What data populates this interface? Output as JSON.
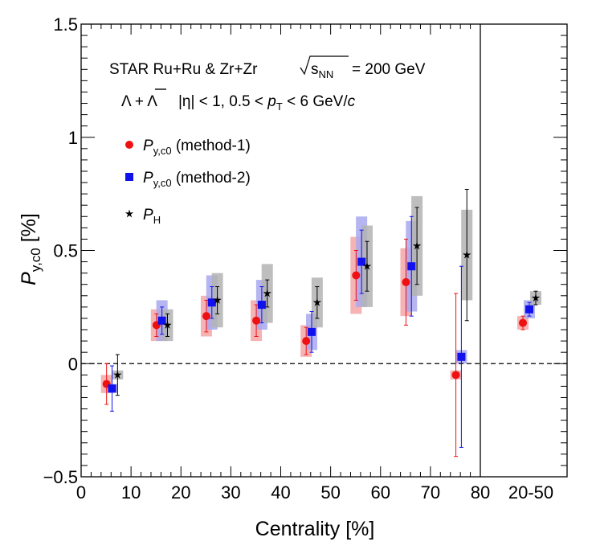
{
  "chart_data": {
    "type": "scatter",
    "annotation": {
      "experiment": "STAR  Ru+Ru & Zr+Zr",
      "energy_sqrt": "s",
      "energy_sub": "NN",
      "energy_value": "= 200 GeV",
      "particle_lambda": "Λ + ",
      "particle_lambda_bar": "Λ",
      "kin_1": "|η| < 1, 0.5 < ",
      "kin_p": "p",
      "kin_sub": "T",
      "kin_2": " < 6 GeV/",
      "kin_c": "c"
    },
    "ylabel_main": "P",
    "ylabel_sub": "y,c0",
    "ylabel_unit": " [%]",
    "xlabel": "Centrality [%]",
    "xlim": [
      0,
      80
    ],
    "ylim": [
      -0.5,
      1.5
    ],
    "x_ticks": [
      "0",
      "10",
      "20",
      "30",
      "40",
      "50",
      "60",
      "70",
      "80"
    ],
    "y_ticks": [
      "−0.5",
      "0",
      "0.5",
      "1",
      "1.5"
    ],
    "integrated_label": "20-50",
    "legend": [
      {
        "main": "P",
        "sub": "y,c0",
        "suffix": " (method-1)",
        "color": "#ee1111",
        "marker": "circle"
      },
      {
        "main": "P",
        "sub": "y,c0",
        "suffix": " (method-2)",
        "color": "#1111ee",
        "marker": "square"
      },
      {
        "main": "P",
        "sub": "H",
        "suffix": "",
        "color": "#000000",
        "marker": "star"
      }
    ],
    "series": [
      {
        "name": "P y,c0 (method-1)",
        "color": "#ee1111",
        "sys_color": "#f4a6a6",
        "points": [
          {
            "x": 5.1,
            "y": -0.09,
            "stat": 0.09,
            "sys": 0.04
          },
          {
            "x": 15.1,
            "y": 0.17,
            "stat": 0.05,
            "sys": 0.07
          },
          {
            "x": 25.1,
            "y": 0.21,
            "stat": 0.07,
            "sys": 0.09
          },
          {
            "x": 35.1,
            "y": 0.19,
            "stat": 0.07,
            "sys": 0.09
          },
          {
            "x": 45.1,
            "y": 0.1,
            "stat": 0.06,
            "sys": 0.07
          },
          {
            "x": 55.1,
            "y": 0.39,
            "stat": 0.11,
            "sys": 0.17
          },
          {
            "x": 65.1,
            "y": 0.36,
            "stat": 0.19,
            "sys": 0.15
          },
          {
            "x": 75.1,
            "y": -0.05,
            "stat": 0.36,
            "sys": 0.02
          }
        ],
        "integrated": {
          "y": 0.18,
          "stat": 0.03,
          "sys": 0.03
        }
      },
      {
        "name": "P y,c0 (method-2)",
        "color": "#1111ee",
        "sys_color": "#a8a8ee",
        "points": [
          {
            "x": 6.2,
            "y": -0.11,
            "stat": 0.1,
            "sys": 0.02
          },
          {
            "x": 16.2,
            "y": 0.19,
            "stat": 0.06,
            "sys": 0.09
          },
          {
            "x": 26.2,
            "y": 0.27,
            "stat": 0.07,
            "sys": 0.12
          },
          {
            "x": 36.2,
            "y": 0.26,
            "stat": 0.08,
            "sys": 0.11
          },
          {
            "x": 46.2,
            "y": 0.14,
            "stat": 0.09,
            "sys": 0.08
          },
          {
            "x": 56.2,
            "y": 0.45,
            "stat": 0.14,
            "sys": 0.2
          },
          {
            "x": 66.2,
            "y": 0.43,
            "stat": 0.22,
            "sys": 0.2
          },
          {
            "x": 76.2,
            "y": 0.03,
            "stat": 0.4,
            "sys": 0.03
          }
        ],
        "integrated": {
          "y": 0.24,
          "stat": 0.03,
          "sys": 0.04
        }
      },
      {
        "name": "P H",
        "color": "#000000",
        "sys_color": "#b3b3b3",
        "points": [
          {
            "x": 7.3,
            "y": -0.05,
            "stat": 0.09,
            "sys": 0.02
          },
          {
            "x": 17.3,
            "y": 0.17,
            "stat": 0.05,
            "sys": 0.07
          },
          {
            "x": 27.3,
            "y": 0.28,
            "stat": 0.06,
            "sys": 0.12
          },
          {
            "x": 37.3,
            "y": 0.31,
            "stat": 0.06,
            "sys": 0.13
          },
          {
            "x": 47.3,
            "y": 0.27,
            "stat": 0.07,
            "sys": 0.11
          },
          {
            "x": 57.3,
            "y": 0.43,
            "stat": 0.11,
            "sys": 0.18
          },
          {
            "x": 67.3,
            "y": 0.52,
            "stat": 0.17,
            "sys": 0.22
          },
          {
            "x": 77.3,
            "y": 0.48,
            "stat": 0.29,
            "sys": 0.2
          }
        ],
        "integrated": {
          "y": 0.29,
          "stat": 0.03,
          "sys": 0.03
        }
      }
    ]
  }
}
